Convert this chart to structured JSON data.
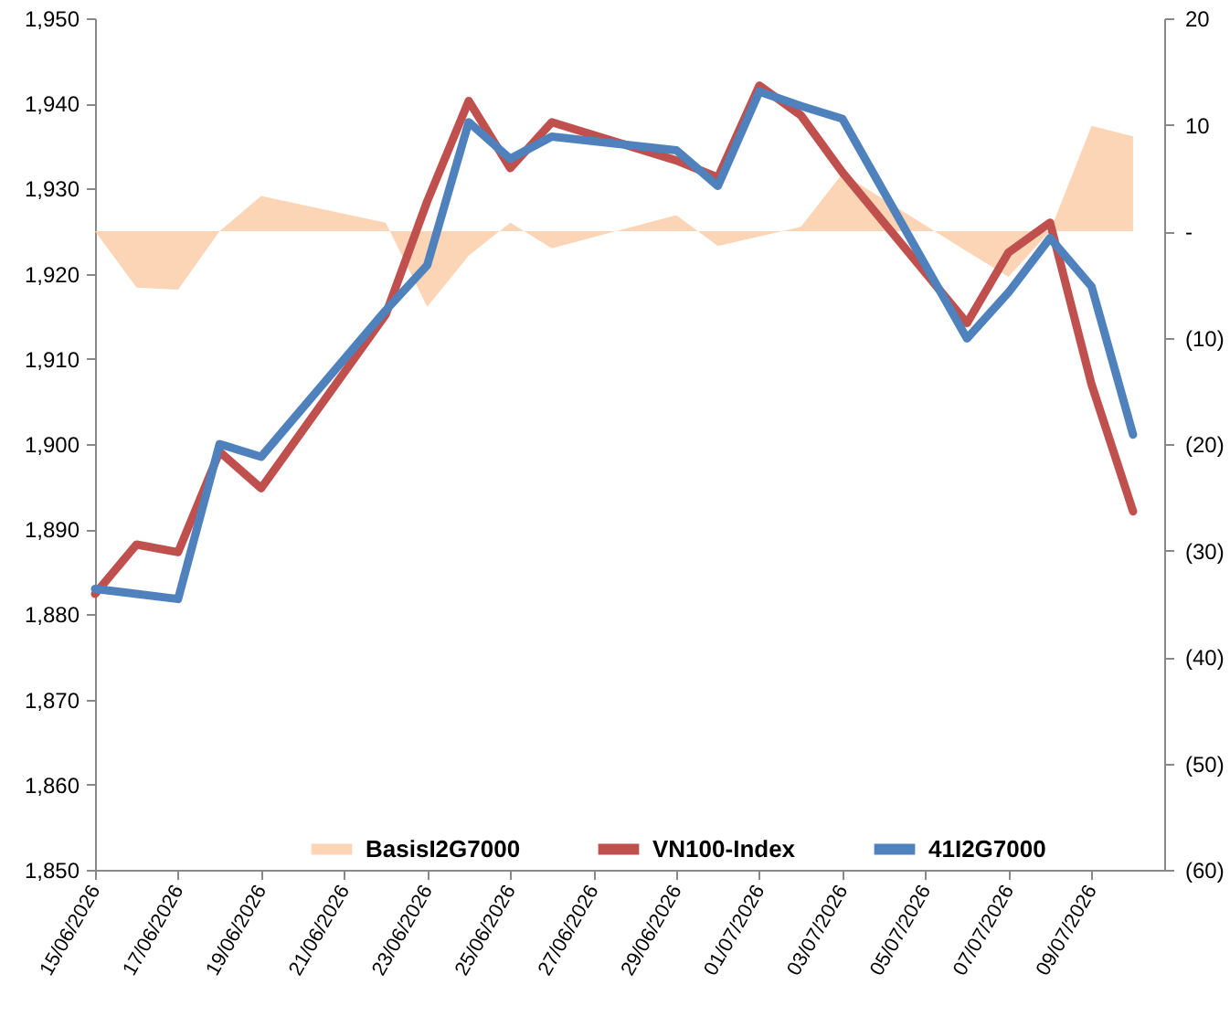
{
  "chart_data": {
    "type": "line",
    "x": [
      "2026-06-15",
      "2026-06-16",
      "2026-06-17",
      "2026-06-18",
      "2026-06-19",
      "2026-06-22",
      "2026-06-23",
      "2026-06-24",
      "2026-06-25",
      "2026-06-26",
      "2026-06-29",
      "2026-06-30",
      "2026-07-01",
      "2026-07-02",
      "2026-07-03",
      "2026-07-06",
      "2026-07-07",
      "2026-07-08",
      "2026-07-09",
      "2026-07-10"
    ],
    "series": [
      {
        "name": "BasisI2G7000",
        "type": "area",
        "axis": "y2",
        "color": "#fbd5b5",
        "values": [
          0,
          -5.3,
          -5.5,
          0,
          3.3,
          0.8,
          -7.1,
          -2.3,
          0.8,
          -1.6,
          1.5,
          -1.4,
          -0.5,
          0.4,
          5.4,
          -1.9,
          -4.3,
          0,
          9.9,
          8.9
        ]
      },
      {
        "name": "VN100-Index",
        "color": "#c0504d",
        "values": [
          1882.4,
          1888.2,
          1887.3,
          1899.1,
          1894.8,
          1915.2,
          1928.5,
          1940.3,
          1932.4,
          1937.8,
          1933.3,
          1931.3,
          1942.1,
          1938.6,
          1931.9,
          1914.2,
          1922.5,
          1926.0,
          1907.0,
          1892.1
        ]
      },
      {
        "name": "41I2G7000",
        "color": "#4f81bd",
        "values": [
          1883.0,
          1882.4,
          1881.8,
          1900.0,
          1898.5,
          1915.7,
          1921.0,
          1937.8,
          1933.5,
          1936.1,
          1934.5,
          1930.3,
          1941.4,
          1939.7,
          1938.2,
          1912.4,
          1917.8,
          1924.2,
          1918.5,
          1901.1
        ]
      }
    ],
    "xlim": [
      "2026-06-15",
      "2026-07-10T18:00"
    ],
    "xticks": [
      {
        "value": "2026-06-15",
        "label": "15/06/2026"
      },
      {
        "value": "2026-06-17",
        "label": "17/06/2026"
      },
      {
        "value": "2026-06-19",
        "label": "19/06/2026"
      },
      {
        "value": "2026-06-21",
        "label": "21/06/2026"
      },
      {
        "value": "2026-06-23",
        "label": "23/06/2026"
      },
      {
        "value": "2026-06-25",
        "label": "25/06/2026"
      },
      {
        "value": "2026-06-27",
        "label": "27/06/2026"
      },
      {
        "value": "2026-06-29",
        "label": "29/06/2026"
      },
      {
        "value": "2026-07-01",
        "label": "01/07/2026"
      },
      {
        "value": "2026-07-03",
        "label": "03/07/2026"
      },
      {
        "value": "2026-07-05",
        "label": "05/07/2026"
      },
      {
        "value": "2026-07-07",
        "label": "07/07/2026"
      },
      {
        "value": "2026-07-09",
        "label": "09/07/2026"
      }
    ],
    "ylim": [
      1850,
      1950
    ],
    "yticks": [
      {
        "value": 1850,
        "label": "1,850"
      },
      {
        "value": 1860,
        "label": "1,860"
      },
      {
        "value": 1870,
        "label": "1,870"
      },
      {
        "value": 1880,
        "label": "1,880"
      },
      {
        "value": 1890,
        "label": "1,890"
      },
      {
        "value": 1900,
        "label": "1,900"
      },
      {
        "value": 1910,
        "label": "1,910"
      },
      {
        "value": 1920,
        "label": "1,920"
      },
      {
        "value": 1930,
        "label": "1,930"
      },
      {
        "value": 1940,
        "label": "1,940"
      },
      {
        "value": 1950,
        "label": "1,950"
      }
    ],
    "y2lim": [
      -60,
      20
    ],
    "y2ticks": [
      {
        "value": -60,
        "label": "(60)"
      },
      {
        "value": -50,
        "label": "(50)"
      },
      {
        "value": -40,
        "label": "(40)"
      },
      {
        "value": -30,
        "label": "(30)"
      },
      {
        "value": -20,
        "label": "(20)"
      },
      {
        "value": -10,
        "label": "(10)"
      },
      {
        "value": 0,
        "label": "-"
      },
      10,
      20
    ],
    "grid": false,
    "legend": "bottom"
  }
}
